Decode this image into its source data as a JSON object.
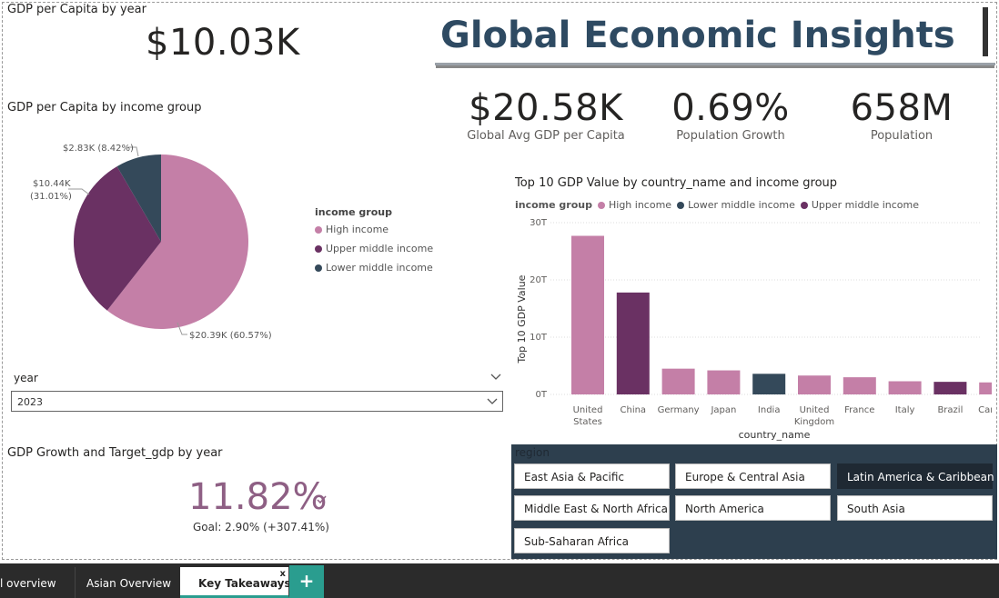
{
  "banner": {
    "title": "Global Economic Insights"
  },
  "gdp_year_card": {
    "title": "GDP per Capita by year",
    "value": "$10.03K"
  },
  "kpis": [
    {
      "value": "$20.58K",
      "label": "Global Avg GDP per Capita"
    },
    {
      "value": "0.69%",
      "label": "Population Growth"
    },
    {
      "value": "658M",
      "label": "Population"
    }
  ],
  "pie": {
    "title": "GDP per Capita by income group",
    "legend_title": "income group",
    "colors": {
      "High income": "#c47fa7",
      "Upper middle income": "#6a3163",
      "Lower middle income": "#34495a"
    },
    "slice_labels": {
      "high": "$20.39K (60.57%)",
      "upper_line1": "$10.44K",
      "upper_line2": "(31.01%)",
      "lower": "$2.83K (8.42%)"
    }
  },
  "year_slicer": {
    "label": "year",
    "value": "2023"
  },
  "gauge_card": {
    "title": "GDP Growth and Target_gdp by year",
    "value": "11.82%",
    "goal": "Goal: 2.90% (+307.41%)"
  },
  "bar_legend_title": "income group",
  "bar_title": "Top 10 GDP Value by country_name and income group",
  "region": {
    "title": "region",
    "buttons": [
      {
        "label": "East Asia & Pacific",
        "selected": false
      },
      {
        "label": "Europe & Central Asia",
        "selected": false
      },
      {
        "label": "Latin America & Caribbean",
        "selected": true
      },
      {
        "label": "Middle East & North Africa",
        "selected": false
      },
      {
        "label": "North America",
        "selected": false
      },
      {
        "label": "South Asia",
        "selected": false
      },
      {
        "label": "Sub-Saharan Africa",
        "selected": false
      }
    ]
  },
  "tabs": [
    {
      "label": "l overview",
      "active": false
    },
    {
      "label": "Asian Overview",
      "active": false
    },
    {
      "label": "Key Takeaways",
      "active": true
    }
  ],
  "add_tab_label": "+",
  "chart_data": [
    {
      "type": "pie",
      "title": "GDP per Capita by income group",
      "legend_title": "income group",
      "categories": [
        "High income",
        "Upper middle income",
        "Lower middle income"
      ],
      "values": [
        20390,
        10440,
        2830
      ],
      "percents": [
        60.57,
        31.01,
        8.42
      ],
      "legend_position": "right"
    },
    {
      "type": "bar",
      "title": "Top 10 GDP Value by country_name and income group",
      "xlabel": "country_name",
      "ylabel": "Top 10 GDP Value",
      "legend_title": "income group",
      "legend_entries": [
        "High income",
        "Lower middle income",
        "Upper middle income"
      ],
      "legend_position": "top-left",
      "ylim": [
        0,
        30
      ],
      "yticks": [
        "0T",
        "10T",
        "20T",
        "30T"
      ],
      "categories": [
        "United States",
        "China",
        "Germany",
        "Japan",
        "India",
        "United Kingdom",
        "France",
        "Italy",
        "Brazil",
        "Canada"
      ],
      "category_labels": [
        [
          "United",
          "States"
        ],
        [
          "China"
        ],
        [
          "Germany"
        ],
        [
          "Japan"
        ],
        [
          "India"
        ],
        [
          "United",
          "Kingdom"
        ],
        [
          "France"
        ],
        [
          "Italy"
        ],
        [
          "Brazil"
        ],
        [
          "Canada"
        ]
      ],
      "values": [
        27.7,
        17.8,
        4.5,
        4.2,
        3.6,
        3.3,
        3.0,
        2.3,
        2.2,
        2.1
      ],
      "groups": [
        "High income",
        "Upper middle income",
        "High income",
        "High income",
        "Lower middle income",
        "High income",
        "High income",
        "High income",
        "Upper middle income",
        "High income"
      ],
      "grid": true
    }
  ]
}
